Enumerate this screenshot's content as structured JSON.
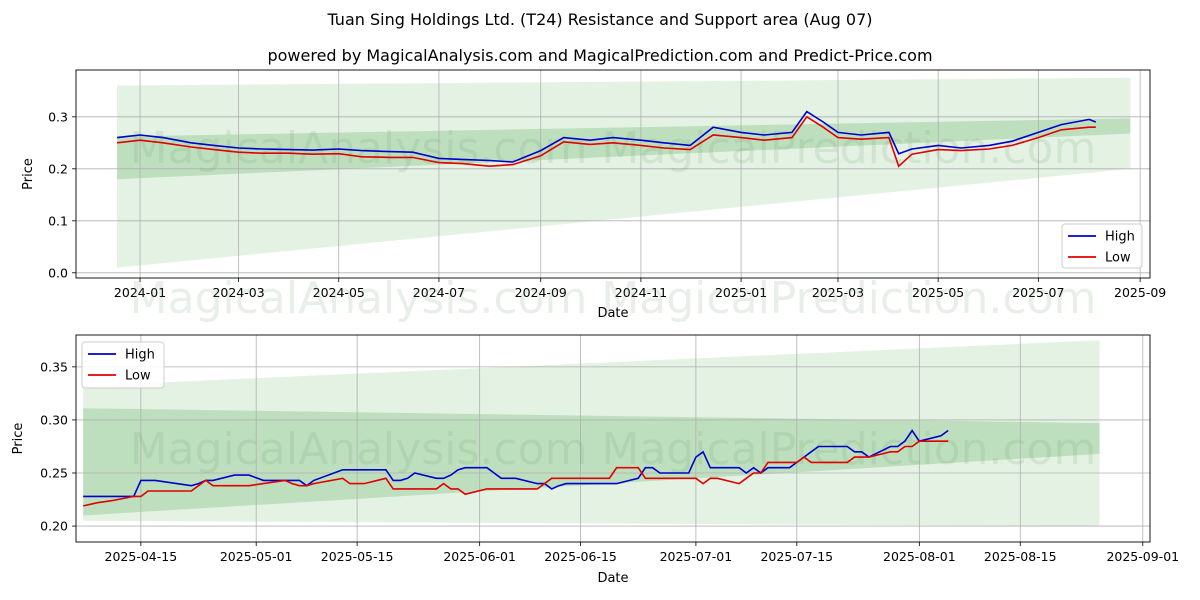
{
  "title": "Tuan Sing Holdings Ltd. (T24) Resistance and Support area (Aug 07)",
  "subtitle": "powered by MagicalAnalysis.com and MagicalPrediction.com and Predict-Price.com",
  "watermark": [
    "MagicalAnalysis.com",
    "MagicalPrediction.com"
  ],
  "colors": {
    "high": "#0000cc",
    "low": "#e00000",
    "band_outer": "#c8e6c8",
    "band_inner": "#9fd09f",
    "grid": "#b0b0b0"
  },
  "chart_data": [
    {
      "type": "line",
      "xlabel": "Date",
      "ylabel": "Price",
      "xlim": [
        "2023-11-23",
        "2025-09-07"
      ],
      "ylim": [
        -0.01,
        0.39
      ],
      "x_ticks": [
        "2024-01-01",
        "2024-03-01",
        "2024-05-01",
        "2024-07-01",
        "2024-09-01",
        "2024-11-01",
        "2025-01-01",
        "2025-03-01",
        "2025-05-01",
        "2025-07-01",
        "2025-09-01"
      ],
      "x_tick_labels": [
        "2024-01",
        "2024-03",
        "2024-05",
        "2024-07",
        "2024-09",
        "2024-11",
        "2025-01",
        "2025-03",
        "2025-05",
        "2025-07",
        "2025-09"
      ],
      "y_ticks": [
        0.0,
        0.1,
        0.2,
        0.3
      ],
      "y_tick_labels": [
        "0.0",
        "0.1",
        "0.2",
        "0.3"
      ],
      "grid": true,
      "legend": {
        "position": "lower-right",
        "entries": [
          "High",
          "Low"
        ]
      },
      "bands": [
        {
          "x": [
            "2023-12-18",
            "2025-08-26"
          ],
          "upper": [
            0.36,
            0.375
          ],
          "lower": [
            0.01,
            0.2
          ]
        },
        {
          "x": [
            "2023-12-18",
            "2025-08-26"
          ],
          "upper": [
            0.262,
            0.297
          ],
          "lower": [
            0.18,
            0.268
          ]
        }
      ],
      "series": [
        {
          "name": "High",
          "x": [
            "2023-12-18",
            "2024-01-01",
            "2024-01-15",
            "2024-02-01",
            "2024-02-15",
            "2024-03-01",
            "2024-03-15",
            "2024-04-01",
            "2024-04-15",
            "2024-05-01",
            "2024-05-15",
            "2024-06-01",
            "2024-06-15",
            "2024-07-01",
            "2024-07-15",
            "2024-08-01",
            "2024-08-15",
            "2024-09-01",
            "2024-09-15",
            "2024-10-01",
            "2024-10-15",
            "2024-11-01",
            "2024-11-15",
            "2024-12-01",
            "2024-12-15",
            "2025-01-01",
            "2025-01-15",
            "2025-02-01",
            "2025-02-10",
            "2025-02-20",
            "2025-03-01",
            "2025-03-15",
            "2025-04-01",
            "2025-04-07",
            "2025-04-15",
            "2025-05-01",
            "2025-05-15",
            "2025-06-01",
            "2025-06-15",
            "2025-07-01",
            "2025-07-15",
            "2025-08-01",
            "2025-08-05"
          ],
          "values": [
            0.26,
            0.265,
            0.26,
            0.25,
            0.245,
            0.24,
            0.238,
            0.237,
            0.236,
            0.238,
            0.235,
            0.233,
            0.232,
            0.22,
            0.218,
            0.216,
            0.213,
            0.235,
            0.26,
            0.255,
            0.26,
            0.255,
            0.25,
            0.245,
            0.28,
            0.27,
            0.265,
            0.27,
            0.31,
            0.29,
            0.27,
            0.265,
            0.27,
            0.229,
            0.238,
            0.245,
            0.24,
            0.245,
            0.253,
            0.27,
            0.285,
            0.295,
            0.29
          ]
        },
        {
          "name": "Low",
          "x": [
            "2023-12-18",
            "2024-01-01",
            "2024-01-15",
            "2024-02-01",
            "2024-02-15",
            "2024-03-01",
            "2024-03-15",
            "2024-04-01",
            "2024-04-15",
            "2024-05-01",
            "2024-05-15",
            "2024-06-01",
            "2024-06-15",
            "2024-07-01",
            "2024-07-15",
            "2024-08-01",
            "2024-08-15",
            "2024-09-01",
            "2024-09-15",
            "2024-10-01",
            "2024-10-15",
            "2024-11-01",
            "2024-11-15",
            "2024-12-01",
            "2024-12-15",
            "2025-01-01",
            "2025-01-15",
            "2025-02-01",
            "2025-02-10",
            "2025-02-20",
            "2025-03-01",
            "2025-03-15",
            "2025-04-01",
            "2025-04-07",
            "2025-04-15",
            "2025-05-01",
            "2025-05-15",
            "2025-06-01",
            "2025-06-15",
            "2025-07-01",
            "2025-07-15",
            "2025-08-01",
            "2025-08-05"
          ],
          "values": [
            0.25,
            0.255,
            0.25,
            0.242,
            0.237,
            0.232,
            0.23,
            0.23,
            0.228,
            0.229,
            0.223,
            0.222,
            0.222,
            0.212,
            0.21,
            0.205,
            0.208,
            0.225,
            0.252,
            0.247,
            0.25,
            0.245,
            0.24,
            0.237,
            0.265,
            0.26,
            0.255,
            0.26,
            0.3,
            0.28,
            0.26,
            0.257,
            0.26,
            0.205,
            0.228,
            0.237,
            0.235,
            0.238,
            0.245,
            0.26,
            0.275,
            0.28,
            0.28
          ]
        }
      ]
    },
    {
      "type": "line",
      "xlabel": "Date",
      "ylabel": "Price",
      "xlim": [
        "2025-04-06",
        "2025-09-02"
      ],
      "ylim": [
        0.185,
        0.38
      ],
      "x_ticks": [
        "2025-04-15",
        "2025-05-01",
        "2025-05-15",
        "2025-06-01",
        "2025-06-15",
        "2025-07-01",
        "2025-07-15",
        "2025-08-01",
        "2025-08-15",
        "2025-09-01"
      ],
      "x_tick_labels": [
        "2025-04-15",
        "2025-05-01",
        "2025-05-15",
        "2025-06-01",
        "2025-06-15",
        "2025-07-01",
        "2025-07-15",
        "2025-08-01",
        "2025-08-15",
        "2025-09-01"
      ],
      "y_ticks": [
        0.2,
        0.25,
        0.3,
        0.35
      ],
      "y_tick_labels": [
        "0.20",
        "0.25",
        "0.30",
        "0.35"
      ],
      "grid": true,
      "legend": {
        "position": "top-left",
        "entries": [
          "High",
          "Low"
        ]
      },
      "bands": [
        {
          "x": [
            "2025-04-07",
            "2025-08-26"
          ],
          "upper": [
            0.332,
            0.375
          ],
          "lower": [
            0.205,
            0.2
          ]
        },
        {
          "x": [
            "2025-04-07",
            "2025-08-26"
          ],
          "upper": [
            0.311,
            0.297
          ],
          "lower": [
            0.21,
            0.268
          ]
        }
      ],
      "series": [
        {
          "name": "High",
          "x": [
            "2025-04-07",
            "2025-04-09",
            "2025-04-10",
            "2025-04-11",
            "2025-04-14",
            "2025-04-15",
            "2025-04-16",
            "2025-04-17",
            "2025-04-22",
            "2025-04-23",
            "2025-04-24",
            "2025-04-25",
            "2025-04-28",
            "2025-04-29",
            "2025-04-30",
            "2025-05-02",
            "2025-05-05",
            "2025-05-06",
            "2025-05-07",
            "2025-05-08",
            "2025-05-09",
            "2025-05-13",
            "2025-05-14",
            "2025-05-15",
            "2025-05-16",
            "2025-05-19",
            "2025-05-20",
            "2025-05-21",
            "2025-05-22",
            "2025-05-23",
            "2025-05-26",
            "2025-05-27",
            "2025-05-28",
            "2025-05-29",
            "2025-05-30",
            "2025-06-02",
            "2025-06-03",
            "2025-06-04",
            "2025-06-05",
            "2025-06-06",
            "2025-06-09",
            "2025-06-10",
            "2025-06-11",
            "2025-06-12",
            "2025-06-13",
            "2025-06-16",
            "2025-06-17",
            "2025-06-18",
            "2025-06-19",
            "2025-06-20",
            "2025-06-23",
            "2025-06-24",
            "2025-06-25",
            "2025-06-26",
            "2025-06-27",
            "2025-06-30",
            "2025-07-01",
            "2025-07-02",
            "2025-07-03",
            "2025-07-04",
            "2025-07-07",
            "2025-07-08",
            "2025-07-09",
            "2025-07-10",
            "2025-07-11",
            "2025-07-14",
            "2025-07-15",
            "2025-07-16",
            "2025-07-17",
            "2025-07-18",
            "2025-07-21",
            "2025-07-22",
            "2025-07-23",
            "2025-07-24",
            "2025-07-25",
            "2025-07-28",
            "2025-07-29",
            "2025-07-30",
            "2025-07-31",
            "2025-08-01",
            "2025-08-04",
            "2025-08-05"
          ],
          "values": [
            0.228,
            0.228,
            0.228,
            0.228,
            0.228,
            0.243,
            0.243,
            0.243,
            0.238,
            0.24,
            0.243,
            0.243,
            0.248,
            0.248,
            0.248,
            0.243,
            0.243,
            0.243,
            0.243,
            0.238,
            0.243,
            0.253,
            0.253,
            0.253,
            0.253,
            0.253,
            0.243,
            0.243,
            0.245,
            0.25,
            0.245,
            0.245,
            0.248,
            0.253,
            0.255,
            0.255,
            0.25,
            0.245,
            0.245,
            0.245,
            0.24,
            0.24,
            0.235,
            0.238,
            0.24,
            0.24,
            0.24,
            0.24,
            0.24,
            0.24,
            0.245,
            0.255,
            0.255,
            0.25,
            0.25,
            0.25,
            0.265,
            0.27,
            0.255,
            0.255,
            0.255,
            0.25,
            0.255,
            0.25,
            0.255,
            0.255,
            0.26,
            0.265,
            0.27,
            0.275,
            0.275,
            0.275,
            0.27,
            0.27,
            0.265,
            0.275,
            0.275,
            0.28,
            0.29,
            0.28,
            0.285,
            0.29
          ]
        },
        {
          "name": "Low",
          "x": [
            "2025-04-07",
            "2025-04-09",
            "2025-04-10",
            "2025-04-11",
            "2025-04-14",
            "2025-04-15",
            "2025-04-16",
            "2025-04-17",
            "2025-04-22",
            "2025-04-23",
            "2025-04-24",
            "2025-04-25",
            "2025-04-28",
            "2025-04-29",
            "2025-04-30",
            "2025-05-02",
            "2025-05-05",
            "2025-05-06",
            "2025-05-07",
            "2025-05-08",
            "2025-05-09",
            "2025-05-13",
            "2025-05-14",
            "2025-05-15",
            "2025-05-16",
            "2025-05-19",
            "2025-05-20",
            "2025-05-21",
            "2025-05-22",
            "2025-05-23",
            "2025-05-26",
            "2025-05-27",
            "2025-05-28",
            "2025-05-29",
            "2025-05-30",
            "2025-06-02",
            "2025-06-03",
            "2025-06-04",
            "2025-06-05",
            "2025-06-06",
            "2025-06-09",
            "2025-06-10",
            "2025-06-11",
            "2025-06-12",
            "2025-06-13",
            "2025-06-16",
            "2025-06-17",
            "2025-06-18",
            "2025-06-19",
            "2025-06-20",
            "2025-06-23",
            "2025-06-24",
            "2025-06-25",
            "2025-06-26",
            "2025-06-27",
            "2025-06-30",
            "2025-07-01",
            "2025-07-02",
            "2025-07-03",
            "2025-07-04",
            "2025-07-07",
            "2025-07-08",
            "2025-07-09",
            "2025-07-10",
            "2025-07-11",
            "2025-07-14",
            "2025-07-15",
            "2025-07-16",
            "2025-07-17",
            "2025-07-18",
            "2025-07-21",
            "2025-07-22",
            "2025-07-23",
            "2025-07-24",
            "2025-07-25",
            "2025-07-28",
            "2025-07-29",
            "2025-07-30",
            "2025-07-31",
            "2025-08-01",
            "2025-08-04",
            "2025-08-05"
          ],
          "values": [
            0.219,
            0.222,
            0.223,
            0.224,
            0.228,
            0.228,
            0.233,
            0.233,
            0.233,
            0.238,
            0.243,
            0.238,
            0.238,
            0.238,
            0.238,
            0.24,
            0.243,
            0.24,
            0.238,
            0.238,
            0.24,
            0.245,
            0.24,
            0.24,
            0.24,
            0.245,
            0.235,
            0.235,
            0.235,
            0.235,
            0.235,
            0.24,
            0.235,
            0.235,
            0.23,
            0.235,
            0.235,
            0.235,
            0.235,
            0.235,
            0.235,
            0.24,
            0.245,
            0.245,
            0.245,
            0.245,
            0.245,
            0.245,
            0.245,
            0.255,
            0.255,
            0.245,
            0.245,
            0.245,
            0.245,
            0.245,
            0.245,
            0.24,
            0.245,
            0.245,
            0.24,
            0.245,
            0.25,
            0.25,
            0.26,
            0.26,
            0.26,
            0.265,
            0.26,
            0.26,
            0.26,
            0.26,
            0.265,
            0.265,
            0.265,
            0.27,
            0.27,
            0.275,
            0.275,
            0.28,
            0.28,
            0.28
          ]
        }
      ]
    }
  ]
}
